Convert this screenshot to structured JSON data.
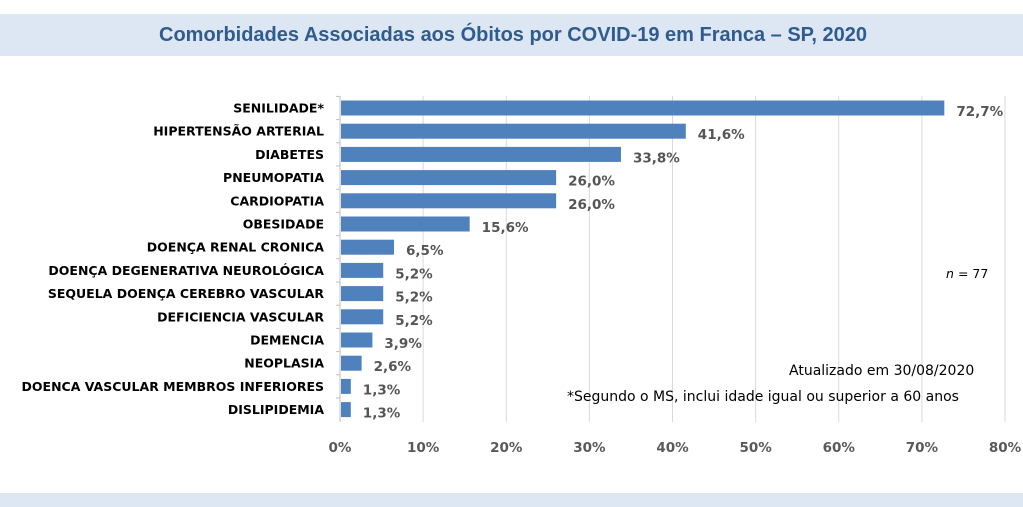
{
  "header": {
    "title": "Comorbidades Associadas aos Óbitos por COVID-19 em Franca – SP, 2020"
  },
  "colors": {
    "bar": "#4f81bd",
    "title": "#2f5c8f",
    "band": "#dde6f3",
    "grid": "#d9d9d9"
  },
  "notes": {
    "n_prefix": "n",
    "n_value": "= 77",
    "updated": "Atualizado em  30/08/2020",
    "footnote": "*Segundo o MS, inclui idade igual ou superior a 60 anos"
  },
  "chart_data": {
    "type": "bar",
    "orientation": "horizontal",
    "title": "Comorbidades Associadas aos Óbitos por COVID-19 em Franca – SP, 2020",
    "xlabel": "",
    "ylabel": "",
    "xlim": [
      0,
      80
    ],
    "grid": true,
    "categories": [
      "SENILIDADE*",
      "HIPERTENSÃO ARTERIAL",
      "DIABETES",
      "PNEUMOPATIA",
      "CARDIOPATIA",
      "OBESIDADE",
      "DOENÇA RENAL CRONICA",
      "DOENÇA DEGENERATIVA NEUROLÓGICA",
      "SEQUELA DOENÇA CEREBRO VASCULAR",
      "DEFICIENCIA VASCULAR",
      "DEMENCIA",
      "NEOPLASIA",
      "DOENCA VASCULAR MEMBROS INFERIORES",
      "DISLIPIDEMIA"
    ],
    "values": [
      72.7,
      41.6,
      33.8,
      26.0,
      26.0,
      15.6,
      6.5,
      5.2,
      5.2,
      5.2,
      3.9,
      2.6,
      1.3,
      1.3
    ],
    "value_labels": [
      "72,7%",
      "41,6%",
      "33,8%",
      "26,0%",
      "26,0%",
      "15,6%",
      "6,5%",
      "5,2%",
      "5,2%",
      "5,2%",
      "3,9%",
      "2,6%",
      "1,3%",
      "1,3%"
    ],
    "ticks": [
      0,
      10,
      20,
      30,
      40,
      50,
      60,
      70,
      80
    ],
    "tick_labels": [
      "0%",
      "10%",
      "20%",
      "30%",
      "40%",
      "50%",
      "60%",
      "70%",
      "80%"
    ]
  }
}
